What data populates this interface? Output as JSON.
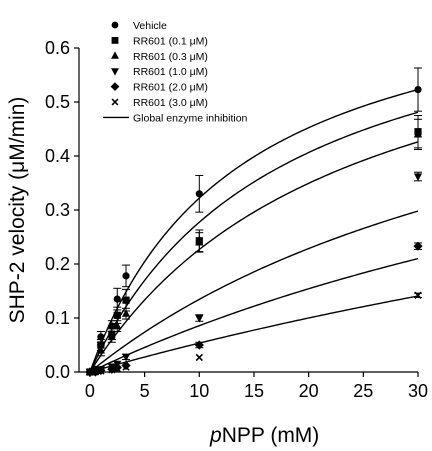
{
  "chart_data": {
    "type": "scatter",
    "xlabel_prefix": "p",
    "xlabel_rest": "NPP (mM)",
    "ylabel": "SHP-2 velocity (μM/min)",
    "xlim": [
      -1,
      30
    ],
    "ylim": [
      0,
      0.6
    ],
    "xticks": [
      0,
      5,
      10,
      15,
      20,
      25,
      30
    ],
    "yticks": [
      0.0,
      0.1,
      0.2,
      0.3,
      0.4,
      0.5,
      0.6
    ],
    "xtick_labels": [
      "0",
      "5",
      "10",
      "15",
      "20",
      "25",
      "30"
    ],
    "ytick_labels": [
      "0.0",
      "0.1",
      "0.2",
      "0.3",
      "0.4",
      "0.5",
      "0.6"
    ],
    "legend_position": "top-left",
    "fit_label": "Global enzyme inhibition",
    "series": [
      {
        "name": "Vehicle",
        "marker": "circle",
        "points": [
          [
            0,
            0.0
          ],
          [
            0.5,
            0.005
          ],
          [
            1,
            0.065
          ],
          [
            2,
            0.085
          ],
          [
            2.5,
            0.135
          ],
          [
            3.3,
            0.178
          ],
          [
            10,
            0.33
          ],
          [
            30,
            0.523
          ]
        ],
        "errors": [
          0,
          0,
          0.01,
          0.01,
          0.02,
          0.02,
          0.034,
          0.04
        ],
        "fit": {
          "vmax": 0.76,
          "km": 13.6
        }
      },
      {
        "name": "RR601 (0.1 μM)",
        "marker": "square",
        "points": [
          [
            0,
            0.0
          ],
          [
            0.5,
            0.003
          ],
          [
            1,
            0.05
          ],
          [
            2,
            0.07
          ],
          [
            2.5,
            0.105
          ],
          [
            3.3,
            0.133
          ],
          [
            10,
            0.243
          ],
          [
            30,
            0.445
          ]
        ],
        "errors": [
          0,
          0,
          0.01,
          0.01,
          0.015,
          0.02,
          0.02,
          0.03
        ],
        "fit": {
          "vmax": 0.76,
          "km": 17.4
        }
      },
      {
        "name": "RR601 (0.3 μM)",
        "marker": "triangle-up",
        "points": [
          [
            0,
            0.0
          ],
          [
            0.5,
            0.002
          ],
          [
            1,
            0.04
          ],
          [
            2,
            0.065
          ],
          [
            2.5,
            0.085
          ],
          [
            3.3,
            0.108
          ],
          [
            10,
            0.24
          ],
          [
            30,
            0.44
          ]
        ],
        "errors": [
          0,
          0,
          0.01,
          0.01,
          0.01,
          0.01,
          0.018,
          0.028
        ],
        "fit": {
          "vmax": 0.76,
          "km": 23.5
        }
      },
      {
        "name": "RR601 (1.0 μM)",
        "marker": "triangle-down",
        "points": [
          [
            0,
            0.0
          ],
          [
            0.5,
            0.001
          ],
          [
            1,
            0.005
          ],
          [
            2,
            0.01
          ],
          [
            2.5,
            0.015
          ],
          [
            3.3,
            0.028
          ],
          [
            10,
            0.1
          ],
          [
            30,
            0.362
          ]
        ],
        "errors": [
          0,
          0,
          0,
          0,
          0,
          0.005,
          0.006,
          0.008
        ],
        "fit": {
          "vmax": 0.76,
          "km": 46.5
        }
      },
      {
        "name": "RR601 (2.0 μM)",
        "marker": "diamond",
        "points": [
          [
            0,
            0.0
          ],
          [
            0.5,
            0.0
          ],
          [
            1,
            0.003
          ],
          [
            2,
            0.005
          ],
          [
            2.5,
            0.008
          ],
          [
            3.3,
            0.012
          ],
          [
            10,
            0.05
          ],
          [
            30,
            0.233
          ]
        ],
        "errors": [
          0,
          0,
          0,
          0,
          0,
          0,
          0.005,
          0.006
        ],
        "fit": {
          "vmax": 0.76,
          "km": 78.6
        }
      },
      {
        "name": "RR601 (3.0 μM)",
        "marker": "x",
        "points": [
          [
            0,
            0.0
          ],
          [
            0.5,
            0.0
          ],
          [
            1,
            0.002
          ],
          [
            2,
            0.004
          ],
          [
            2.5,
            0.006
          ],
          [
            3.3,
            0.009
          ],
          [
            10,
            0.027
          ],
          [
            30,
            0.142
          ]
        ],
        "errors": [
          0,
          0,
          0,
          0,
          0,
          0,
          0,
          0.004
        ],
        "fit": {
          "vmax": 0.76,
          "km": 132
        }
      }
    ]
  }
}
